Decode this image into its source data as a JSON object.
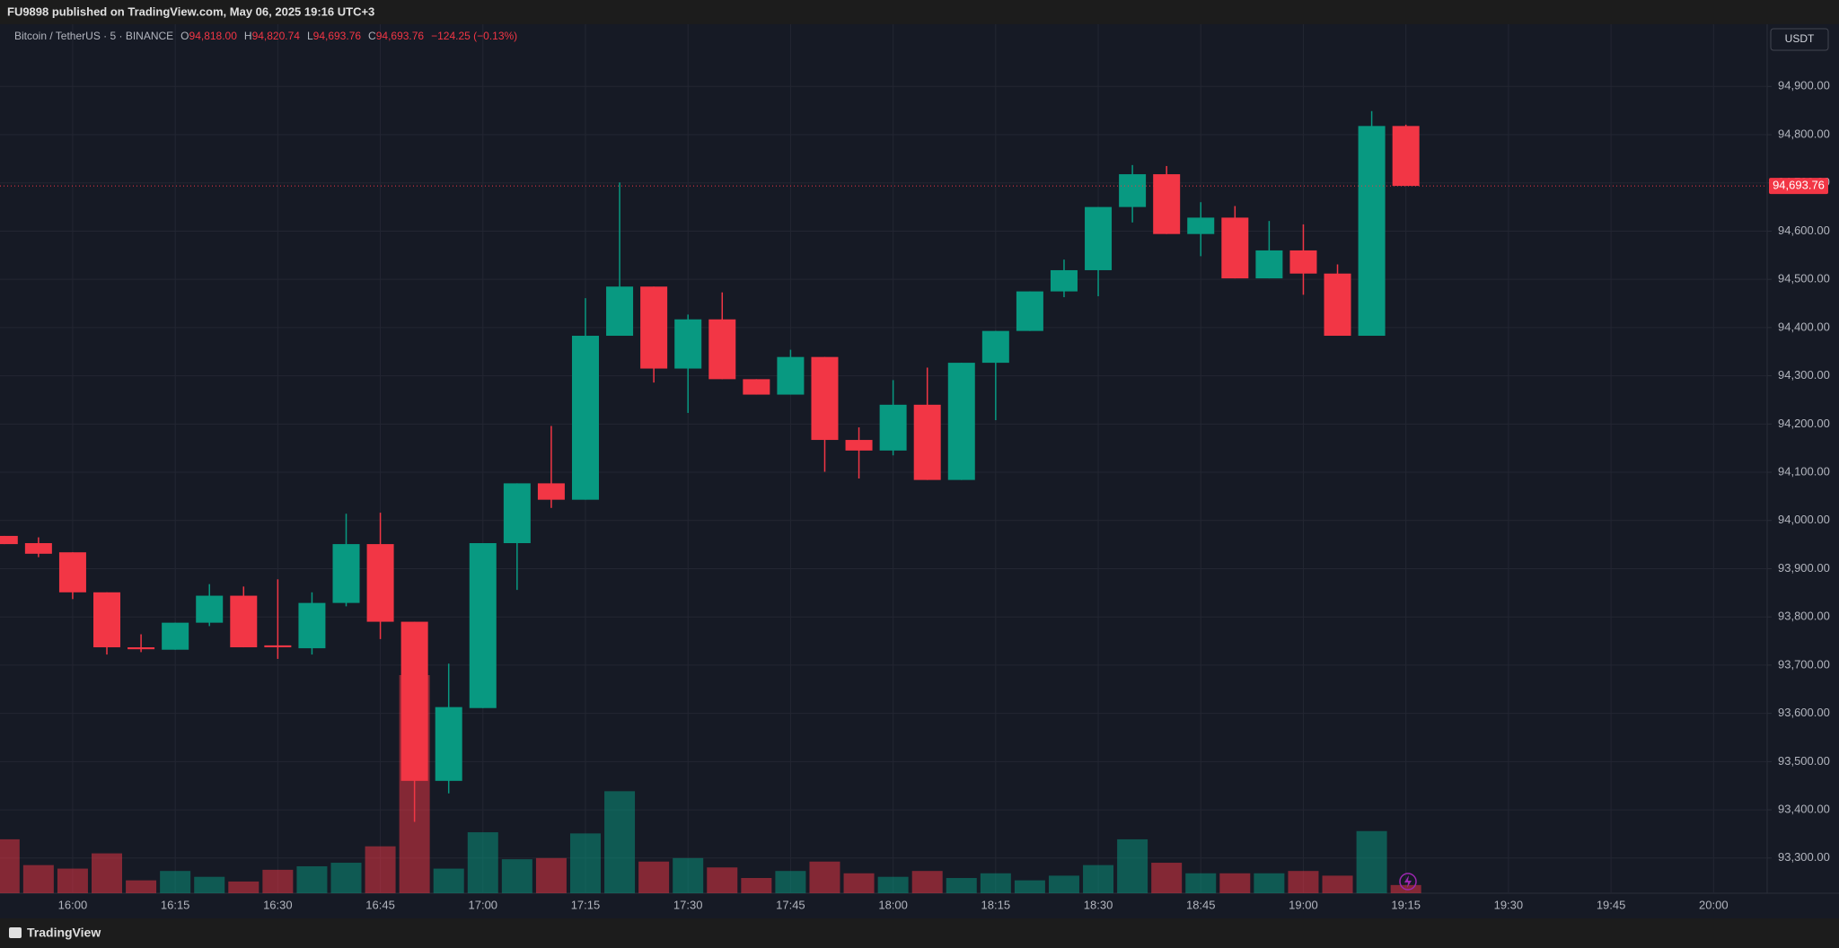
{
  "header": {
    "title": "FU9898 published on TradingView.com, May 06, 2025 19:16 UTC+3"
  },
  "chart_data": {
    "type": "candlestick",
    "symbol": "Bitcoin / TetherUS · 5 · BINANCE",
    "legend_ohlc": [
      {
        "key": "O",
        "value": "94,818.00"
      },
      {
        "key": "H",
        "value": "94,820.74"
      },
      {
        "key": "L",
        "value": "94,693.76"
      },
      {
        "key": "C",
        "value": "94,693.76"
      }
    ],
    "change": "−124.25 (−0.13%)",
    "currency": "USDT",
    "categories": [
      null,
      null,
      "16:00",
      null,
      null,
      "16:15",
      null,
      null,
      "16:30",
      null,
      null,
      "16:45",
      null,
      null,
      "17:00",
      null,
      null,
      "17:15",
      null,
      null,
      "17:30",
      null,
      null,
      "17:45",
      null,
      null,
      "18:00",
      null,
      null,
      "18:15",
      null,
      null,
      "18:30",
      null,
      null,
      "18:45",
      null,
      null,
      "19:00",
      null,
      null,
      "19:15",
      null,
      null,
      "19:30",
      null,
      null,
      "19:45",
      null,
      null,
      "20:00"
    ],
    "open": [
      93968,
      93953,
      93934,
      93851,
      93737,
      93732,
      93788,
      93844,
      93741,
      93735,
      93829,
      93951,
      93790,
      93460,
      93611,
      93953,
      94077,
      94043,
      94383,
      94485,
      94315,
      94417,
      94293,
      94261,
      94339,
      94167,
      94145,
      94240,
      94084,
      94327,
      94393,
      94475,
      94519,
      94650,
      94718,
      94594,
      94628,
      94502,
      94560,
      94512,
      94383,
      94818,
      null,
      null,
      null,
      null,
      null,
      null,
      null,
      null,
      null
    ],
    "high": [
      93968,
      93965,
      93934,
      93851,
      93764,
      93788,
      93868,
      93863,
      93878,
      93851,
      94014,
      94016,
      93790,
      93703,
      93953,
      94077,
      94196,
      94461,
      94701,
      94485,
      94427,
      94473,
      94293,
      94354,
      94339,
      94193,
      94291,
      94317,
      94327,
      94393,
      94475,
      94541,
      94650,
      94737,
      94735,
      94660,
      94652,
      94621,
      94614,
      94531,
      94849,
      94820.74,
      null,
      null,
      null,
      null,
      null,
      null,
      null,
      null,
      null
    ],
    "low": [
      93951,
      93924,
      93837,
      93722,
      93727,
      93732,
      93781,
      93737,
      93713,
      93722,
      93822,
      93754,
      93375,
      93434,
      93611,
      93856,
      94026,
      94043,
      94383,
      94286,
      94223,
      94293,
      94261,
      94261,
      94101,
      94087,
      94135,
      94084,
      94084,
      94208,
      94393,
      94463,
      94465,
      94618,
      94594,
      94548,
      94502,
      94502,
      94468,
      94383,
      94383,
      94693.76,
      null,
      null,
      null,
      null,
      null,
      null,
      null,
      null,
      null
    ],
    "close": [
      93951,
      93931,
      93851,
      93737,
      93733,
      93788,
      93844,
      93737,
      93737,
      93829,
      93951,
      93790,
      93460,
      93613,
      93953,
      94077,
      94043,
      94383,
      94485,
      94315,
      94417,
      94293,
      94261,
      94339,
      94167,
      94145,
      94240,
      94084,
      94327,
      94393,
      94475,
      94519,
      94650,
      94718,
      94594,
      94628,
      94502,
      94560,
      94512,
      94383,
      94818,
      94693.76,
      null,
      null,
      null,
      null,
      null,
      null,
      null,
      null,
      null
    ],
    "volume": [
      46,
      24,
      21,
      34,
      11,
      19,
      14,
      10,
      20,
      23,
      26,
      40,
      186,
      21,
      52,
      29,
      30,
      51,
      87,
      27,
      30,
      22,
      13,
      19,
      27,
      17,
      14,
      19,
      13,
      17,
      11,
      15,
      24,
      46,
      26,
      17,
      17,
      17,
      19,
      15,
      53,
      7,
      null,
      null,
      null,
      null,
      null,
      null,
      null,
      null,
      null
    ],
    "up_color": "#089981",
    "down_color": "#f23645",
    "ylim": [
      93227,
      95029
    ],
    "yticks": [
      {
        "value": 93300,
        "label": "93,300.00"
      },
      {
        "value": 93400,
        "label": "93,400.00"
      },
      {
        "value": 93500,
        "label": "93,500.00"
      },
      {
        "value": 93600,
        "label": "93,600.00"
      },
      {
        "value": 93700,
        "label": "93,700.00"
      },
      {
        "value": 93800,
        "label": "93,800.00"
      },
      {
        "value": 93900,
        "label": "93,900.00"
      },
      {
        "value": 94000,
        "label": "94,000.00"
      },
      {
        "value": 94100,
        "label": "94,100.00"
      },
      {
        "value": 94200,
        "label": "94,200.00"
      },
      {
        "value": 94300,
        "label": "94,300.00"
      },
      {
        "value": 94400,
        "label": "94,400.00"
      },
      {
        "value": 94500,
        "label": "94,500.00"
      },
      {
        "value": 94600,
        "label": "94,600.00"
      },
      {
        "value": 94700,
        "label": "94,700.00"
      },
      {
        "value": 94800,
        "label": "94,800.00"
      },
      {
        "value": 94900,
        "label": "94,900.00"
      }
    ],
    "last_price": {
      "value": 94693.76,
      "label": "94,693.76"
    },
    "grid": true
  },
  "footer": {
    "brand": "TradingView"
  }
}
